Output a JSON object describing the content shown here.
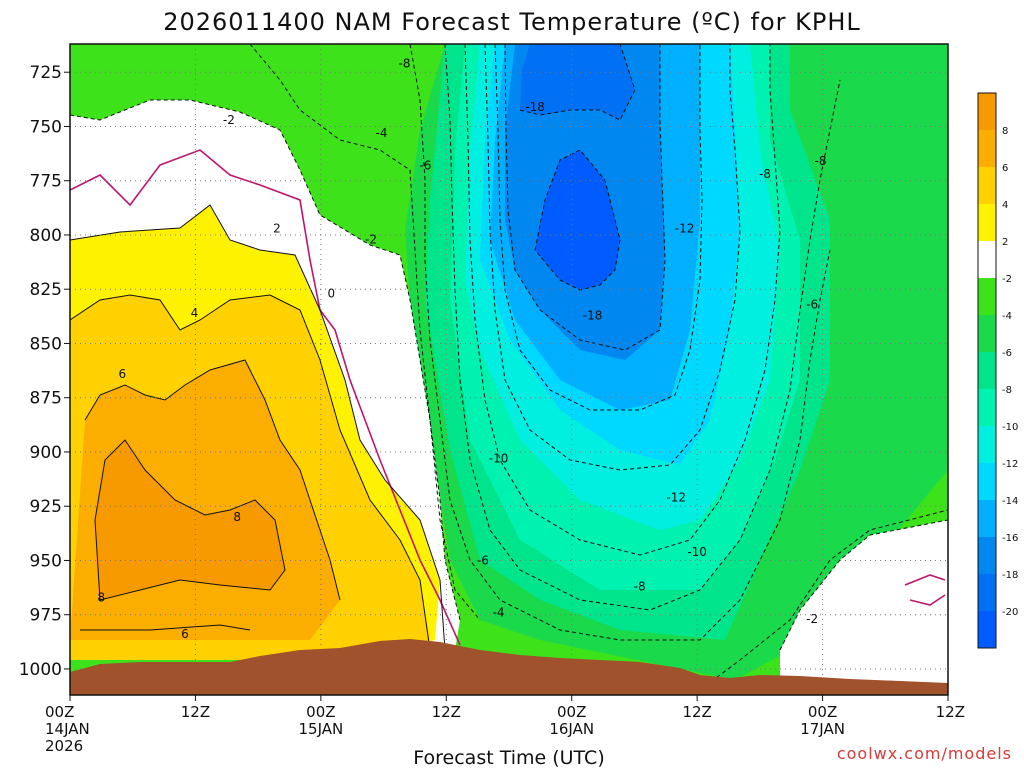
{
  "chart_data": {
    "type": "heatmap",
    "title": "2026011400 NAM Forecast Temperature (ºC) for KPHL",
    "xlabel": "Forecast Time (UTC)",
    "ylabel": "",
    "credit": "coolwx.com/models",
    "y_axis": {
      "unit": "hPa",
      "range": [
        1012,
        712
      ],
      "ticks": [
        "725",
        "750",
        "775",
        "800",
        "825",
        "850",
        "875",
        "900",
        "925",
        "950",
        "975",
        "1000"
      ]
    },
    "x_axis": {
      "range_hours": [
        0,
        84
      ],
      "ticks": [
        {
          "hour": 0,
          "line1": "00Z",
          "line2": "14JAN",
          "line3": "2026"
        },
        {
          "hour": 12,
          "line1": "12Z",
          "line2": "",
          "line3": ""
        },
        {
          "hour": 24,
          "line1": "00Z",
          "line2": "15JAN",
          "line3": ""
        },
        {
          "hour": 36,
          "line1": "12Z",
          "line2": "",
          "line3": ""
        },
        {
          "hour": 48,
          "line1": "00Z",
          "line2": "16JAN",
          "line3": ""
        },
        {
          "hour": 60,
          "line1": "12Z",
          "line2": "",
          "line3": ""
        },
        {
          "hour": 72,
          "line1": "00Z",
          "line2": "17JAN",
          "line3": ""
        },
        {
          "hour": 84,
          "line1": "12Z",
          "line2": "",
          "line3": ""
        }
      ]
    },
    "grid": true,
    "colorbar": {
      "placement": "right",
      "levels": [
        {
          "label": "8",
          "color": "#f79a00"
        },
        {
          "label": "6",
          "color": "#fcae00"
        },
        {
          "label": "4",
          "color": "#ffd100"
        },
        {
          "label": "2",
          "color": "#fff200"
        },
        {
          "label": "-2",
          "color": "#ffffff"
        },
        {
          "label": "-4",
          "color": "#3ee21a"
        },
        {
          "label": "-6",
          "color": "#1ad94a"
        },
        {
          "label": "-8",
          "color": "#00e58c"
        },
        {
          "label": "-10",
          "color": "#00f2b0"
        },
        {
          "label": "-12",
          "color": "#00efe0"
        },
        {
          "label": "-14",
          "color": "#00d9ff"
        },
        {
          "label": "-16",
          "color": "#00b0ff"
        },
        {
          "label": "-18",
          "color": "#0088f0"
        },
        {
          "label": "-20",
          "color": "#0070f5"
        },
        {
          "label": "",
          "color": "#005cff"
        }
      ]
    },
    "contour_labels": [
      {
        "text": "-8",
        "hour": 32.0,
        "p": 721
      },
      {
        "text": "-18",
        "hour": 44.5,
        "p": 741
      },
      {
        "text": "-2",
        "hour": 15.2,
        "p": 747
      },
      {
        "text": "-4",
        "hour": 29.8,
        "p": 753
      },
      {
        "text": "-6",
        "hour": 34.0,
        "p": 768
      },
      {
        "text": "-8",
        "hour": 66.5,
        "p": 772
      },
      {
        "text": "-8",
        "hour": 71.8,
        "p": 766
      },
      {
        "text": "2",
        "hour": 19.8,
        "p": 797
      },
      {
        "text": "-2",
        "hour": 28.8,
        "p": 802
      },
      {
        "text": "-12",
        "hour": 58.8,
        "p": 797
      },
      {
        "text": "0",
        "hour": 25.0,
        "p": 827
      },
      {
        "text": "-6",
        "hour": 71.0,
        "p": 832
      },
      {
        "text": "4",
        "hour": 11.9,
        "p": 836
      },
      {
        "text": "-18",
        "hour": 50.0,
        "p": 837
      },
      {
        "text": "6",
        "hour": 5.0,
        "p": 864
      },
      {
        "text": "-10",
        "hour": 41.0,
        "p": 903
      },
      {
        "text": "-12",
        "hour": 58.0,
        "p": 921
      },
      {
        "text": "8",
        "hour": 16.0,
        "p": 930
      },
      {
        "text": "-10",
        "hour": 60.0,
        "p": 946
      },
      {
        "text": "-6",
        "hour": 39.5,
        "p": 950
      },
      {
        "text": "8",
        "hour": 3.0,
        "p": 967
      },
      {
        "text": "-8",
        "hour": 54.5,
        "p": 962
      },
      {
        "text": "6",
        "hour": 11.0,
        "p": 984
      },
      {
        "text": "-4",
        "hour": 41.0,
        "p": 974
      },
      {
        "text": "-2",
        "hour": 71.0,
        "p": 977
      }
    ]
  }
}
